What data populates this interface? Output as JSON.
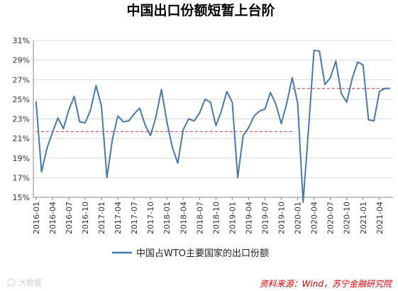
{
  "chart_data": {
    "type": "line",
    "title": "中国出口份额短暂上台阶",
    "xlabel": "",
    "ylabel": "",
    "ylim": [
      15,
      31
    ],
    "yticks": [
      15,
      17,
      19,
      21,
      23,
      25,
      27,
      29,
      31
    ],
    "ytick_labels": [
      "15%",
      "17%",
      "19%",
      "21%",
      "23%",
      "25%",
      "27%",
      "29%",
      "31%"
    ],
    "x": [
      "2016-01",
      "2016-02",
      "2016-03",
      "2016-04",
      "2016-05",
      "2016-06",
      "2016-07",
      "2016-08",
      "2016-09",
      "2016-10",
      "2016-11",
      "2016-12",
      "2017-01",
      "2017-02",
      "2017-03",
      "2017-04",
      "2017-05",
      "2017-06",
      "2017-07",
      "2017-08",
      "2017-09",
      "2017-10",
      "2017-11",
      "2017-12",
      "2018-01",
      "2018-02",
      "2018-03",
      "2018-04",
      "2018-05",
      "2018-06",
      "2018-07",
      "2018-08",
      "2018-09",
      "2018-10",
      "2018-11",
      "2018-12",
      "2019-01",
      "2019-02",
      "2019-03",
      "2019-04",
      "2019-05",
      "2019-06",
      "2019-07",
      "2019-08",
      "2019-09",
      "2019-10",
      "2019-11",
      "2019-12",
      "2020-01",
      "2020-02",
      "2020-03",
      "2020-04",
      "2020-05",
      "2020-06",
      "2020-07",
      "2020-08",
      "2020-09",
      "2020-10",
      "2020-11",
      "2020-12",
      "2021-01",
      "2021-02",
      "2021-03",
      "2021-04",
      "2021-05",
      "2021-06"
    ],
    "xtick_labels": [
      "2016-01",
      "2016-04",
      "2016-07",
      "2016-10",
      "2017-01",
      "2017-04",
      "2017-07",
      "2017-10",
      "2018-01",
      "2018-04",
      "2018-07",
      "2018-10",
      "2019-01",
      "2019-04",
      "2019-07",
      "2019-10",
      "2020-01",
      "2020-04",
      "2020-07",
      "2020-10",
      "2021-01",
      "2021-04"
    ],
    "series": [
      {
        "name": "中国占WTO主要国家的出口份额",
        "color": "#4a78a8",
        "values": [
          24.8,
          17.6,
          20.0,
          21.6,
          23.1,
          22.0,
          23.9,
          25.3,
          22.7,
          22.6,
          23.9,
          26.4,
          24.3,
          17.0,
          20.9,
          23.3,
          22.7,
          22.8,
          23.5,
          24.1,
          22.4,
          21.3,
          23.2,
          26.0,
          22.7,
          20.1,
          18.5,
          21.9,
          23.0,
          22.8,
          23.6,
          25.0,
          24.7,
          22.3,
          23.8,
          25.8,
          24.7,
          17.0,
          21.3,
          22.1,
          23.3,
          23.8,
          24.0,
          25.7,
          24.5,
          22.5,
          24.6,
          27.2,
          24.6,
          14.5,
          22.0,
          30.0,
          29.9,
          26.5,
          27.2,
          28.9,
          25.6,
          24.7,
          27.1,
          28.8,
          28.5,
          22.9,
          22.8,
          25.8,
          26.1,
          26.1
        ]
      }
    ],
    "reference_lines": [
      {
        "value": 21.7,
        "from": "2016-01",
        "to": "2019-12",
        "style": "dashed",
        "color": "#c0504d"
      },
      {
        "value": 26.1,
        "from": "2019-12",
        "to": "2021-06",
        "style": "dashed",
        "color": "#c0504d"
      }
    ],
    "grid": true,
    "legend": "bottom-center"
  },
  "source_text": "资料来源：Wind，苏宁金融研究院",
  "watermark_text": "大数据"
}
